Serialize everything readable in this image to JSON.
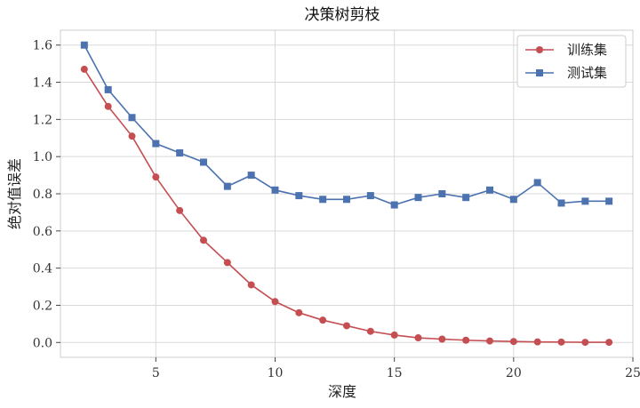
{
  "chart_data": {
    "type": "line",
    "title": "决策树剪枝",
    "xlabel": "深度",
    "ylabel": "绝对值误差",
    "xlim": [
      1,
      25
    ],
    "ylim": [
      -0.08,
      1.68
    ],
    "xticks": [
      5,
      10,
      15,
      20,
      25
    ],
    "yticks": [
      "0.0",
      "0.2",
      "0.4",
      "0.6",
      "0.8",
      "1.0",
      "1.2",
      "1.4",
      "1.6"
    ],
    "grid": true,
    "legend_position": "top-right",
    "x": [
      2,
      3,
      4,
      5,
      6,
      7,
      8,
      9,
      10,
      11,
      12,
      13,
      14,
      15,
      16,
      17,
      18,
      19,
      20,
      21,
      22,
      23,
      24
    ],
    "series": [
      {
        "name": "训练集",
        "color": "#c44e52",
        "marker": "circle",
        "values": [
          1.47,
          1.27,
          1.11,
          0.89,
          0.71,
          0.55,
          0.43,
          0.31,
          0.22,
          0.16,
          0.12,
          0.09,
          0.06,
          0.04,
          0.025,
          0.018,
          0.012,
          0.008,
          0.005,
          0.003,
          0.002,
          0.001,
          0.001
        ]
      },
      {
        "name": "测试集",
        "color": "#4c72b0",
        "marker": "square",
        "values": [
          1.6,
          1.36,
          1.21,
          1.07,
          1.02,
          0.97,
          0.84,
          0.9,
          0.82,
          0.79,
          0.77,
          0.77,
          0.79,
          0.74,
          0.78,
          0.8,
          0.78,
          0.82,
          0.77,
          0.86,
          0.75,
          0.76,
          0.76
        ]
      }
    ]
  }
}
